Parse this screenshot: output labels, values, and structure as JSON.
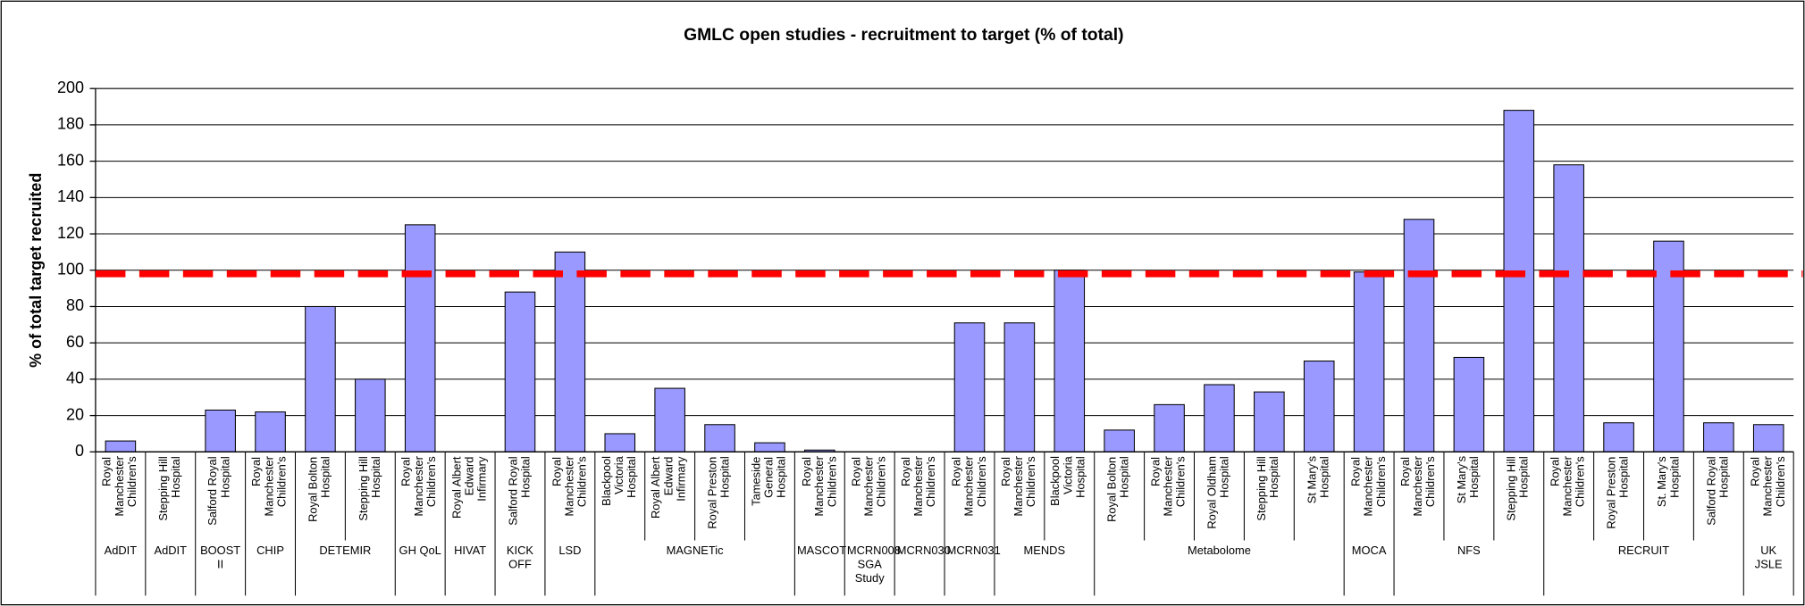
{
  "chart_data": {
    "type": "bar",
    "title": "GMLC open studies - recruitment to target (% of total)",
    "y_label": "% of total target recruited",
    "color": "#9999ff",
    "target_line": {
      "value": 98,
      "color": "#ff0000"
    },
    "ylim": [
      0,
      200
    ],
    "yticks": [
      0,
      20,
      40,
      60,
      80,
      100,
      120,
      140,
      160,
      180,
      200
    ],
    "grid": true,
    "groups": [
      {
        "name": "AdDIT",
        "categories": [
          "Royal Manchester Children's"
        ],
        "values": [
          6
        ]
      },
      {
        "name": "AdDIT",
        "categories": [
          "Stepping Hill Hospital"
        ],
        "values": [
          0
        ]
      },
      {
        "name": "BOOST II",
        "categories": [
          "Salford Royal Hospital"
        ],
        "values": [
          23
        ]
      },
      {
        "name": "CHIP",
        "categories": [
          "Royal Manchester Children's"
        ],
        "values": [
          22
        ]
      },
      {
        "name": "DETEMIR",
        "categories": [
          "Royal Bolton Hospital",
          "Stepping Hill Hospital"
        ],
        "values": [
          80,
          40
        ]
      },
      {
        "name": "GH QoL",
        "categories": [
          "Royal Manchester Children's"
        ],
        "values": [
          125
        ]
      },
      {
        "name": "HIVAT",
        "categories": [
          "Royal Albert Edward Infirmary"
        ],
        "values": [
          0
        ]
      },
      {
        "name": "KICK OFF",
        "categories": [
          "Salford Royal Hospital"
        ],
        "values": [
          88
        ]
      },
      {
        "name": "LSD",
        "categories": [
          "Royal Manchester Children's"
        ],
        "values": [
          110
        ]
      },
      {
        "name": "MAGNETic",
        "categories": [
          "Blackpool Victoria Hospital",
          "Royal Albert Edward Infirmary",
          "Royal Preston Hospital",
          "Tameside General Hospital"
        ],
        "values": [
          10,
          35,
          15,
          5
        ]
      },
      {
        "name": "MASCOT",
        "categories": [
          "Royal Manchester Children's"
        ],
        "values": [
          1
        ]
      },
      {
        "name": "MCRN008 SGA Study",
        "categories": [
          "Royal Manchester Children's"
        ],
        "values": [
          0
        ]
      },
      {
        "name": "MCRN030",
        "categories": [
          "Royal Manchester Children's"
        ],
        "values": [
          0
        ]
      },
      {
        "name": "MCRN031",
        "categories": [
          "Royal Manchester Children's"
        ],
        "values": [
          71
        ]
      },
      {
        "name": "MENDS",
        "categories": [
          "Royal Manchester Children's",
          "Blackpool Victoria Hospital"
        ],
        "values": [
          71,
          100
        ]
      },
      {
        "name": "Metabolome",
        "categories": [
          "Royal Bolton Hospital",
          "Royal Manchester Children's",
          "Royal Oldham Hospital",
          "Stepping Hill Hospital",
          "St Mary's Hospital"
        ],
        "values": [
          12,
          26,
          37,
          33,
          50
        ]
      },
      {
        "name": "MOCA",
        "categories": [
          "Royal Manchester Children's"
        ],
        "values": [
          99
        ]
      },
      {
        "name": "NFS",
        "categories": [
          "Royal Manchester Children's",
          "St Mary's Hospital",
          "Stepping Hill Hospital"
        ],
        "values": [
          128,
          52,
          188
        ]
      },
      {
        "name": "RECRUIT",
        "categories": [
          "Royal Manchester Children's",
          "Royal Preston Hospital",
          "St. Mary's Hospital",
          "Salford Royal Hospital"
        ],
        "values": [
          158,
          16,
          116,
          16
        ]
      },
      {
        "name": "UK JSLE",
        "categories": [
          "Royal Manchester Children's"
        ],
        "values": [
          15
        ]
      }
    ]
  }
}
